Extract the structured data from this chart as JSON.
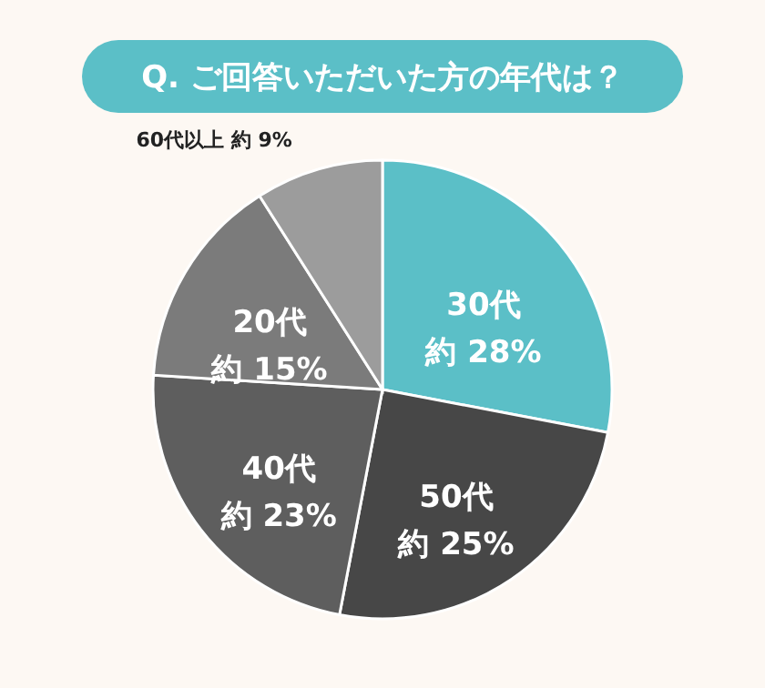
{
  "chart_data": {
    "type": "pie",
    "title": "Q. ご回答いただいた方の年代は？",
    "categories": [
      "30代",
      "50代",
      "40代",
      "20代",
      "60代以上"
    ],
    "values": [
      28,
      25,
      23,
      15,
      9
    ],
    "colors": [
      "#5bbfc7",
      "#474747",
      "#5e5e5e",
      "#7b7b7b",
      "#9c9c9c"
    ],
    "value_labels": [
      "約 28%",
      "約 25%",
      "約 23%",
      "約 15%",
      "約 9%"
    ]
  }
}
